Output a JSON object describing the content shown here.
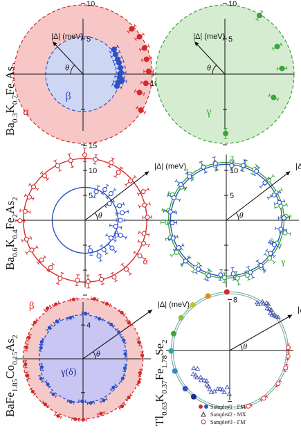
{
  "rows": [
    {
      "compound": [
        "Ba",
        "0.3",
        "K",
        "0.7",
        "Fe",
        "2",
        "As",
        "2"
      ]
    },
    {
      "compound": [
        "Ba",
        "0.6",
        "K",
        "0.4",
        "Fe",
        "2",
        "As",
        "2"
      ]
    },
    {
      "compound": [
        "BaFe",
        "1.85",
        "Co",
        "0.15",
        "As",
        "2"
      ]
    },
    {
      "compound": [
        "Tl",
        "0.63",
        "K",
        "0.37",
        "Fe",
        "1.78",
        "Se",
        "2"
      ]
    }
  ],
  "colors": {
    "red": "#d42a2a",
    "blue": "#2b50c8",
    "green": "#3aa63a",
    "lightred": "#f7c6c6",
    "lightblue": "#cdd6f3",
    "lightgreen": "#d5ecd0",
    "axis": "#111111",
    "gray": "#777777"
  },
  "chart_data": [
    {
      "type": "scatter",
      "subtype": "polar-gap",
      "ylabel": "|Δ| (meV)",
      "angle_label": "θ",
      "ticks": [
        {
          "pos": 5,
          "label": "5"
        },
        {
          "pos": 10,
          "label": "10"
        }
      ],
      "xticks_right": [
        {
          "pos": 5,
          "label": "5"
        },
        {
          "pos": 10,
          "label": "10"
        }
      ],
      "series": [
        {
          "name": "α",
          "color": "red",
          "fill": "lightred",
          "radius": 9.8,
          "points": [
            [
              8.0,
              5.3
            ],
            [
              8.7,
              3.7
            ],
            [
              9.0,
              2.1
            ],
            [
              9.3,
              0.4
            ],
            [
              8.9,
              -1.3
            ],
            [
              8.0,
              -2.6
            ],
            [
              8.2,
              -5.1
            ],
            [
              6.9,
              6.4
            ]
          ]
        },
        {
          "name": "β",
          "color": "blue",
          "fill": "lightblue",
          "radius": 5.3,
          "points": [
            [
              4.6,
              2.8
            ],
            [
              4.9,
              2.1
            ],
            [
              5.1,
              1.6
            ],
            [
              5.3,
              0.9
            ],
            [
              5.4,
              0.2
            ],
            [
              5.2,
              -0.4
            ],
            [
              5.0,
              -1.2
            ],
            [
              4.8,
              -1.7
            ],
            [
              5.5,
              -0.9
            ],
            [
              4.4,
              3.5
            ]
          ]
        }
      ]
    },
    {
      "type": "scatter",
      "subtype": "polar-gap",
      "ylabel": "|Δ| (meV)",
      "angle_label": "θ",
      "ticks": [
        {
          "pos": 5,
          "label": "5"
        },
        {
          "pos": 10,
          "label": "10"
        }
      ],
      "series": [
        {
          "name": "γ",
          "color": "green",
          "fill": "lightgreen",
          "radius": 9.8,
          "points": [
            [
              4.9,
              8.3
            ],
            [
              7.4,
              3.9
            ],
            [
              8.1,
              0.8
            ],
            [
              6.9,
              -3.3
            ],
            [
              0.1,
              -8.4
            ]
          ]
        }
      ]
    },
    {
      "type": "scatter",
      "subtype": "polar-gap",
      "ylabel": "|Δ| (meV)",
      "angle_label": "θ",
      "ticks": [
        {
          "pos": 5,
          "label": "5"
        },
        {
          "pos": 10,
          "label": "10"
        },
        {
          "pos": 15,
          "label": "15"
        }
      ],
      "series": [
        {
          "name": "α",
          "color": "red",
          "radius": 12.4,
          "style": "open",
          "points_note": "open circles with error bars distributed around the ring"
        },
        {
          "name": "β",
          "color": "blue",
          "radius": 6.6,
          "style": "open",
          "points_note": "open circles near the inner ring"
        }
      ]
    },
    {
      "type": "scatter",
      "subtype": "polar-gap",
      "ylabel": "|Δ| (meV)",
      "angle_label": "θ",
      "ticks": [
        {
          "pos": 5,
          "label": "5"
        },
        {
          "pos": 10,
          "label": "10"
        }
      ],
      "series": [
        {
          "name": "γ",
          "color": "green",
          "radius": 11.6,
          "style": "open"
        },
        {
          "name": "δ",
          "color": "blue",
          "radius": 11.2,
          "style": "open"
        }
      ]
    },
    {
      "type": "scatter",
      "subtype": "polar-gap",
      "ylabel": "|Δ| (meV)",
      "angle_label": "θ",
      "ticks": [
        {
          "pos": 4,
          "label": "4"
        }
      ],
      "series": [
        {
          "name": "β",
          "color": "red",
          "fill": "lightred",
          "radius": 7.1,
          "style": "filled"
        },
        {
          "name": "γ(δ)",
          "color": "blue",
          "fill": "lightblue",
          "radius": 5.2,
          "style": "filled"
        }
      ]
    },
    {
      "type": "scatter",
      "subtype": "polar-gap",
      "ylabel": "|Δ| (meV)",
      "angle_label": "θ",
      "ticks": [
        {
          "pos": 8,
          "label": "8"
        }
      ],
      "legend": [
        {
          "marker": "filled-circles",
          "label": "Sample#1 - ΓM"
        },
        {
          "marker": "open-triangle",
          "label": "Sample#2 - MX"
        },
        {
          "marker": "open-circle",
          "label": "Sample#3 - ΓM'"
        }
      ],
      "legend_position": "bottom-right",
      "series": [
        {
          "name": "Sample#1 - ΓM",
          "color": "multi",
          "radius": 9.2,
          "style": "filled"
        },
        {
          "name": "Sample#2 - MX",
          "color": "blue",
          "radius": 6.5,
          "style": "open-triangle"
        },
        {
          "name": "Sample#3 - ΓM'",
          "color": "red",
          "radius": 9.2,
          "style": "open-circle"
        }
      ]
    }
  ]
}
